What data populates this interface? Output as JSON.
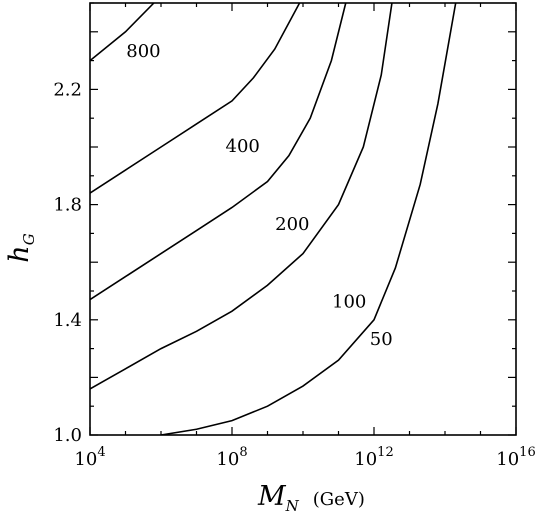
{
  "chart_data": {
    "type": "line",
    "title": "",
    "xlabel": {
      "main": "M",
      "sub": "N",
      "unit": "(GeV)"
    },
    "ylabel": {
      "main": "h",
      "sub": "G"
    },
    "x_scale": "log10",
    "xlim": [
      10000,
      1e+16
    ],
    "ylim": [
      1.0,
      2.5
    ],
    "x_ticks": [
      {
        "base": "10",
        "exp": "4",
        "value": 10000
      },
      {
        "base": "10",
        "exp": "8",
        "value": 100000000
      },
      {
        "base": "10",
        "exp": "12",
        "value": 1000000000000
      },
      {
        "base": "10",
        "exp": "16",
        "value": 10000000000000000
      }
    ],
    "y_ticks": [
      {
        "label": "1.0",
        "value": 1.0
      },
      {
        "label": "1.4",
        "value": 1.4
      },
      {
        "label": "1.8",
        "value": 1.8
      },
      {
        "label": "2.2",
        "value": 2.2
      }
    ],
    "grid": false,
    "legend": "none",
    "series": [
      {
        "name": "800",
        "label_at": {
          "x": 320000,
          "y": 2.33
        },
        "points": [
          [
            10000,
            2.3
          ],
          [
            100000,
            2.4
          ],
          [
            630000,
            2.5
          ]
        ]
      },
      {
        "name": "400",
        "label_at": {
          "x": 200000000,
          "y": 2.0
        },
        "points": [
          [
            10000,
            1.84
          ],
          [
            100000,
            1.92
          ],
          [
            1000000,
            2.0
          ],
          [
            10000000,
            2.08
          ],
          [
            100000000,
            2.16
          ],
          [
            400000000,
            2.24
          ],
          [
            1600000000,
            2.34
          ],
          [
            8000000000,
            2.5
          ]
        ]
      },
      {
        "name": "200",
        "label_at": {
          "x": 5000000000,
          "y": 1.73
        },
        "points": [
          [
            10000,
            1.47
          ],
          [
            100000,
            1.55
          ],
          [
            1000000,
            1.63
          ],
          [
            10000000,
            1.71
          ],
          [
            100000000,
            1.79
          ],
          [
            1000000000,
            1.88
          ],
          [
            4000000000,
            1.97
          ],
          [
            16000000000,
            2.1
          ],
          [
            63000000000,
            2.3
          ],
          [
            160000000000,
            2.5
          ]
        ]
      },
      {
        "name": "100",
        "label_at": {
          "x": 200000000000,
          "y": 1.46
        },
        "points": [
          [
            10000,
            1.16
          ],
          [
            100000,
            1.23
          ],
          [
            1000000,
            1.3
          ],
          [
            10000000,
            1.36
          ],
          [
            100000000,
            1.43
          ],
          [
            1000000000,
            1.52
          ],
          [
            10000000000,
            1.63
          ],
          [
            100000000000,
            1.8
          ],
          [
            500000000000,
            2.0
          ],
          [
            1600000000000,
            2.25
          ],
          [
            3200000000000,
            2.5
          ]
        ]
      },
      {
        "name": "50",
        "label_at": {
          "x": 1600000000000,
          "y": 1.33
        },
        "points": [
          [
            1000000,
            1.0
          ],
          [
            10000000,
            1.02
          ],
          [
            100000000,
            1.05
          ],
          [
            1000000000,
            1.1
          ],
          [
            10000000000,
            1.17
          ],
          [
            100000000000,
            1.26
          ],
          [
            1000000000000,
            1.4
          ],
          [
            4000000000000,
            1.58
          ],
          [
            20000000000000,
            1.87
          ],
          [
            63000000000000,
            2.15
          ],
          [
            200000000000000,
            2.5
          ]
        ]
      }
    ]
  }
}
